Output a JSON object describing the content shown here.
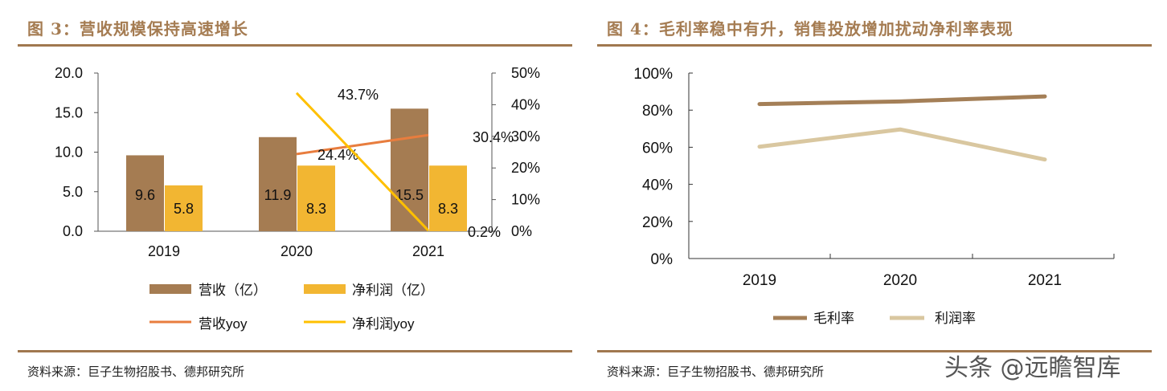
{
  "left": {
    "title": "图 3：营收规模保持高速增长",
    "source": "资料来源：巨子生物招股书、德邦研究所"
  },
  "right": {
    "title": "图 4：毛利率稳中有升，销售投放增加扰动净利率表现",
    "source": "资料来源：巨子生物招股书、德邦研究所"
  },
  "watermark": "头条 @远瞻智库",
  "colors": {
    "rule": "#a0784f",
    "revenue": "#a57c52",
    "net_profit": "#f2b632",
    "revenue_yoy": "#e87d3e",
    "net_profit_yoy": "#ffc000",
    "gross_margin": "#a47f57",
    "net_margin": "#d9c7a0"
  },
  "chart_data": [
    {
      "type": "bar+line",
      "categories": [
        "2019",
        "2020",
        "2021"
      ],
      "left_axis": {
        "ylim": [
          0,
          20
        ],
        "ticks": [
          "0.0",
          "5.0",
          "10.0",
          "15.0",
          "20.0"
        ]
      },
      "right_axis": {
        "ylim": [
          0,
          50
        ],
        "ticks": [
          "0%",
          "10%",
          "20%",
          "30%",
          "40%",
          "50%"
        ]
      },
      "bar_series": [
        {
          "name": "营收（亿）",
          "values": [
            9.6,
            11.9,
            15.5
          ],
          "labels": [
            "9.6",
            "11.9",
            "15.5"
          ]
        },
        {
          "name": "净利润（亿）",
          "values": [
            5.8,
            8.3,
            8.3
          ],
          "labels": [
            "5.8",
            "8.3",
            "8.3"
          ]
        }
      ],
      "line_series": [
        {
          "name": "营收yoy",
          "values": [
            null,
            24.4,
            30.4
          ],
          "labels": [
            "",
            "24.4%",
            "30.4%"
          ]
        },
        {
          "name": "净利润yoy",
          "values": [
            null,
            43.7,
            0.2
          ],
          "labels": [
            "",
            "43.7%",
            "0.2%"
          ]
        }
      ],
      "legend": "bottom"
    },
    {
      "type": "line",
      "categories": [
        "2019",
        "2020",
        "2021"
      ],
      "ylim": [
        0,
        100
      ],
      "ticks": [
        "0%",
        "20%",
        "40%",
        "60%",
        "80%",
        "100%"
      ],
      "series": [
        {
          "name": "毛利率",
          "values": [
            83.3,
            84.7,
            87.4
          ]
        },
        {
          "name": "利润率",
          "values": [
            60.3,
            69.6,
            53.4
          ]
        }
      ],
      "legend": "bottom"
    }
  ]
}
